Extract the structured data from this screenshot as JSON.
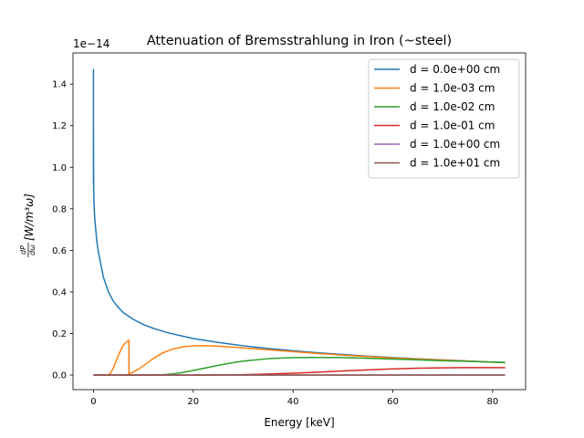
{
  "chart_data": {
    "type": "line",
    "title": "Attenuation of Bremsstrahlung in Iron (~steel)",
    "xlabel": "Energy [keV]",
    "ylabel": "dP/dω [W/m³ω]",
    "ylabel_parts": {
      "num": "dP",
      "den": "dω",
      "rest": " [W/m³ω]"
    },
    "y_scale_note": "1e−14",
    "xlim": [
      -4.1,
      86.6
    ],
    "ylim": [
      -0.07,
      1.55
    ],
    "x_ticks": [
      0,
      20,
      40,
      60,
      80
    ],
    "x_tick_labels": [
      "0",
      "20",
      "40",
      "60",
      "80"
    ],
    "y_ticks": [
      0.0,
      0.2,
      0.4,
      0.6,
      0.8,
      1.0,
      1.2,
      1.4
    ],
    "y_tick_labels": [
      "0.0",
      "0.2",
      "0.4",
      "0.6",
      "0.8",
      "1.0",
      "1.2",
      "1.4"
    ],
    "grid": false,
    "legend_position": "top-right",
    "series": [
      {
        "name": "d = 0.0e+00 cm",
        "color": "#1f77b4",
        "x": [
          0.0,
          0.0,
          0.0,
          0.0,
          0.05,
          0.1,
          0.2,
          0.3,
          0.5,
          0.7,
          1.0,
          1.5,
          2,
          3,
          4,
          5,
          6,
          8,
          10,
          12,
          15,
          20,
          25,
          30,
          35,
          40,
          45,
          50,
          55,
          60,
          65,
          70,
          75,
          80,
          82.5
        ],
        "y": [
          0.92,
          1.47,
          0.92,
          1.2,
          0.89,
          0.83,
          0.78,
          0.74,
          0.69,
          0.64,
          0.59,
          0.53,
          0.47,
          0.4,
          0.355,
          0.325,
          0.3,
          0.268,
          0.243,
          0.225,
          0.203,
          0.176,
          0.157,
          0.141,
          0.128,
          0.117,
          0.107,
          0.099,
          0.091,
          0.084,
          0.078,
          0.073,
          0.068,
          0.063,
          0.061
        ]
      },
      {
        "name": "d = 1.0e-03 cm",
        "color": "#ff7f0e",
        "x": [
          0,
          2.8,
          3.0,
          3.5,
          4,
          4.5,
          5,
          5.5,
          6,
          6.5,
          7.0,
          7.11,
          7.11,
          8,
          9,
          10,
          12,
          14,
          16,
          18,
          20,
          22,
          25,
          30,
          35,
          40,
          45,
          50,
          55,
          60,
          65,
          70,
          75,
          80,
          82.5
        ],
        "y": [
          0,
          0,
          0.001,
          0.012,
          0.035,
          0.065,
          0.095,
          0.122,
          0.143,
          0.158,
          0.166,
          0.168,
          0.005,
          0.015,
          0.028,
          0.045,
          0.08,
          0.108,
          0.126,
          0.136,
          0.141,
          0.142,
          0.139,
          0.131,
          0.122,
          0.113,
          0.104,
          0.096,
          0.089,
          0.082,
          0.077,
          0.072,
          0.067,
          0.062,
          0.06
        ]
      },
      {
        "name": "d = 1.0e-02 cm",
        "color": "#2ca02c",
        "x": [
          0,
          12,
          14,
          16,
          18,
          20,
          22,
          25,
          28,
          30,
          35,
          40,
          45,
          50,
          55,
          60,
          65,
          70,
          75,
          80,
          82.5
        ],
        "y": [
          0,
          0,
          0.002,
          0.006,
          0.013,
          0.022,
          0.032,
          0.047,
          0.06,
          0.067,
          0.079,
          0.084,
          0.085,
          0.084,
          0.081,
          0.077,
          0.073,
          0.069,
          0.066,
          0.062,
          0.06
        ]
      },
      {
        "name": "d = 1.0e-01 cm",
        "color": "#d62728",
        "x": [
          0,
          20,
          25,
          30,
          35,
          40,
          45,
          50,
          55,
          60,
          65,
          70,
          75,
          80,
          82.5
        ],
        "y": [
          0,
          0,
          0.0005,
          0.002,
          0.005,
          0.009,
          0.014,
          0.02,
          0.025,
          0.03,
          0.033,
          0.035,
          0.036,
          0.036,
          0.036
        ]
      },
      {
        "name": "d = 1.0e+00 cm",
        "color": "#9467bd",
        "x": [
          0,
          82.5
        ],
        "y": [
          0,
          0
        ]
      },
      {
        "name": "d = 1.0e+01 cm",
        "color": "#8c564b",
        "x": [
          0,
          82.5
        ],
        "y": [
          0,
          0
        ]
      }
    ]
  }
}
